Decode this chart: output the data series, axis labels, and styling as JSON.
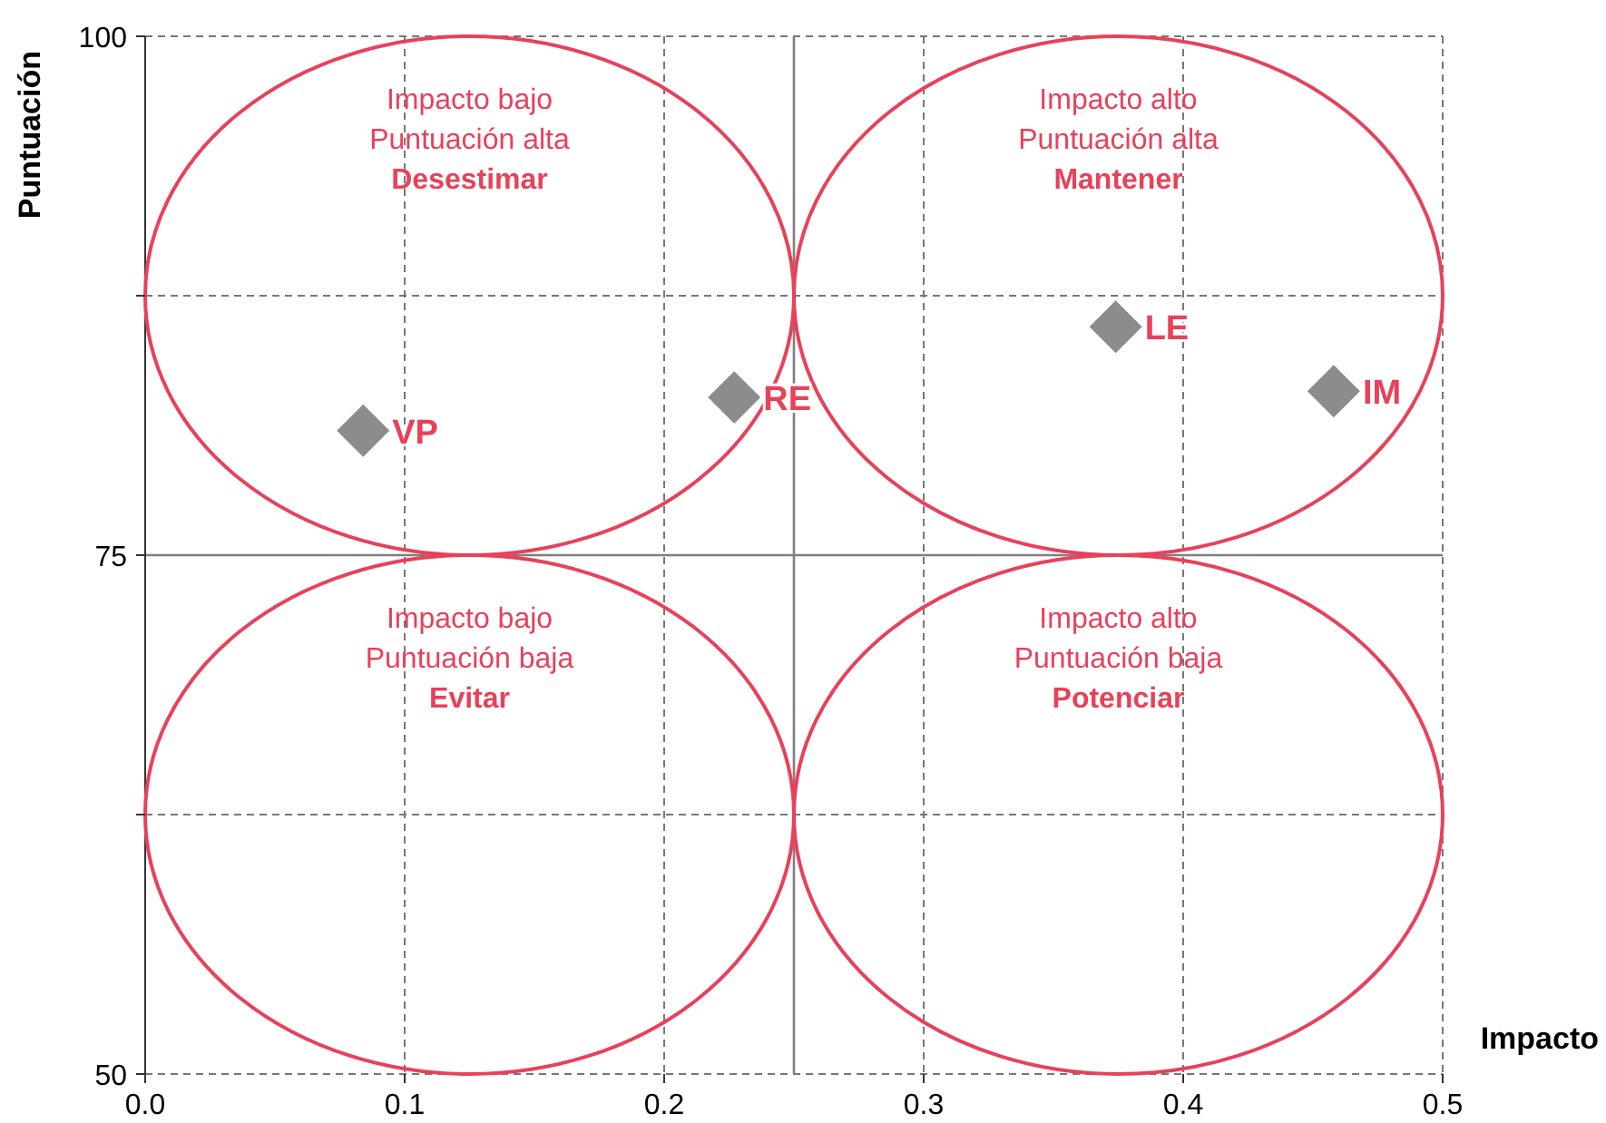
{
  "chart_data": {
    "type": "scatter",
    "xlabel": "Impacto",
    "ylabel": "Puntuación",
    "xlim": [
      0,
      0.5
    ],
    "ylim": [
      50,
      100
    ],
    "xticks": [
      {
        "value": 0,
        "label": "0.0"
      },
      0.1,
      0.2,
      0.3,
      0.4,
      0.5
    ],
    "yticks": [
      50,
      {
        "value": 62.5,
        "label": null
      },
      75,
      {
        "value": 87.5,
        "label": null
      },
      100
    ],
    "grid": true,
    "marker": "diamond",
    "ref_lines": [
      {
        "axis": "x",
        "value": 0.25,
        "color": "#808080"
      },
      {
        "axis": "y",
        "value": 75,
        "color": "#808080"
      }
    ],
    "annotations": [
      "Impacto bajo\nPuntuación alta\nDesestimar",
      "Impacto alto\nPuntuación alta\nMantener",
      "Impacto bajo\nPuntuación baja\nEvitar",
      "Impacto alto\nPuntuación baja\nPotenciar"
    ],
    "series": [
      {
        "name": "VP",
        "color": "#8c8c8c",
        "x": [
          0.084
        ],
        "values": [
          81.0
        ]
      },
      {
        "name": "RE",
        "color": "#8c8c8c",
        "x": [
          0.227
        ],
        "values": [
          82.6
        ]
      },
      {
        "name": "LE",
        "color": "#8c8c8c",
        "x": [
          0.374
        ],
        "values": [
          86.0
        ]
      },
      {
        "name": "IM",
        "color": "#8c8c8c",
        "x": [
          0.458
        ],
        "values": [
          82.9
        ]
      }
    ]
  }
}
